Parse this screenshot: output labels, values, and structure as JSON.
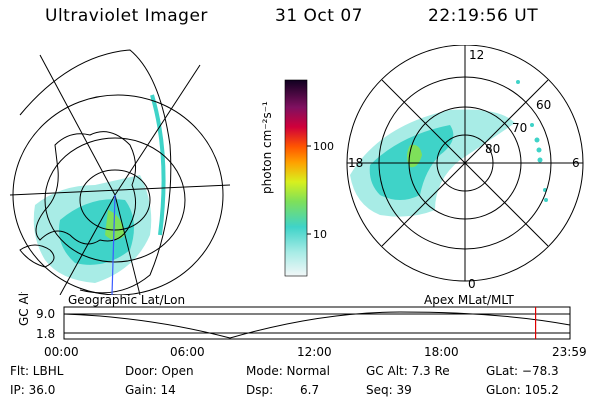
{
  "header": {
    "instrument": "Ultraviolet Imager",
    "date": "31 Oct 07",
    "time": "22:19:56 UT"
  },
  "colorbar": {
    "unit_label": "photon cm⁻²s⁻¹",
    "ticks": [
      "100",
      "10"
    ]
  },
  "polar": {
    "mlt_labels": [
      "12",
      "18",
      "6",
      "0"
    ],
    "mlat_labels": [
      "60",
      "70",
      "80"
    ]
  },
  "maps": {
    "left_label": "Geographic Lat/Lon",
    "right_label": "Apex  MLat/MLT"
  },
  "timeline": {
    "axis_label": "GC Alt",
    "y_ticks": [
      "9.0",
      "1.8"
    ],
    "x_ticks": [
      "00:00",
      "06:00",
      "12:00",
      "18:00",
      "23:59"
    ],
    "current_marker_fraction": 0.932
  },
  "info": {
    "filter": "Flt: LBHL",
    "door": "Door: Open",
    "mode": "Mode: Normal",
    "gc_alt": "GC Alt: 7.3 Re",
    "glat": "GLat: −78.3",
    "ip": "IP: 36.0",
    "gain": "Gain: 14",
    "dsp_label": "Dsp:",
    "dsp_value": "6.7",
    "seq": "Seq: 39",
    "glon": "GLon: 105.2"
  },
  "colors": {
    "aurora_main": "#3fd3c8",
    "aurora_light": "#a8ece6",
    "aurora_green": "#7ee05a",
    "marker": "#e00000",
    "blue_line": "#3a5bff"
  }
}
